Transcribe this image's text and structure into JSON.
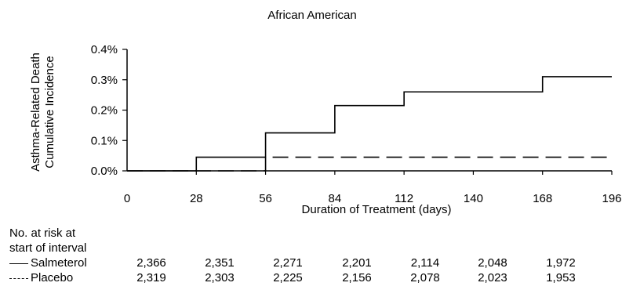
{
  "chart_data": {
    "type": "line",
    "title": "African American",
    "xlabel": "Duration of Treatment (days)",
    "ylabel": [
      "Asthma-Related Death",
      "Cumulative Incidence"
    ],
    "x_ticks": [
      0,
      28,
      56,
      84,
      112,
      140,
      168,
      196
    ],
    "x_tick_labels": [
      "0",
      "28",
      "56",
      "84",
      "112",
      "140",
      "168",
      "196"
    ],
    "y_ticks": [
      0.0,
      0.1,
      0.2,
      0.3,
      0.4
    ],
    "y_tick_labels": [
      "0.0%",
      "0.1%",
      "0.2%",
      "0.3%",
      "0.4%"
    ],
    "xlim": [
      0,
      196
    ],
    "ylim": [
      0,
      0.4
    ],
    "grid": false,
    "series": [
      {
        "name": "Salmeterol",
        "style": "solid",
        "step": true,
        "x": [
          0,
          28,
          56,
          84,
          112,
          168,
          196
        ],
        "y": [
          0.0,
          0.045,
          0.125,
          0.215,
          0.26,
          0.31,
          0.31
        ]
      },
      {
        "name": "Placebo",
        "style": "dashed",
        "step": true,
        "x": [
          0,
          28,
          56,
          196
        ],
        "y": [
          0.0,
          0.0,
          0.045,
          0.045
        ]
      }
    ]
  },
  "risk_table": {
    "header": "No. at risk at\nstart of interval",
    "rows": [
      {
        "label": "Salmeterol",
        "values": [
          "2,366",
          "2,351",
          "2,271",
          "2,201",
          "2,114",
          "2,048",
          "1,972"
        ]
      },
      {
        "label": "Placebo",
        "values": [
          "2,319",
          "2,303",
          "2,225",
          "2,156",
          "2,078",
          "2,023",
          "1,953"
        ]
      }
    ]
  }
}
